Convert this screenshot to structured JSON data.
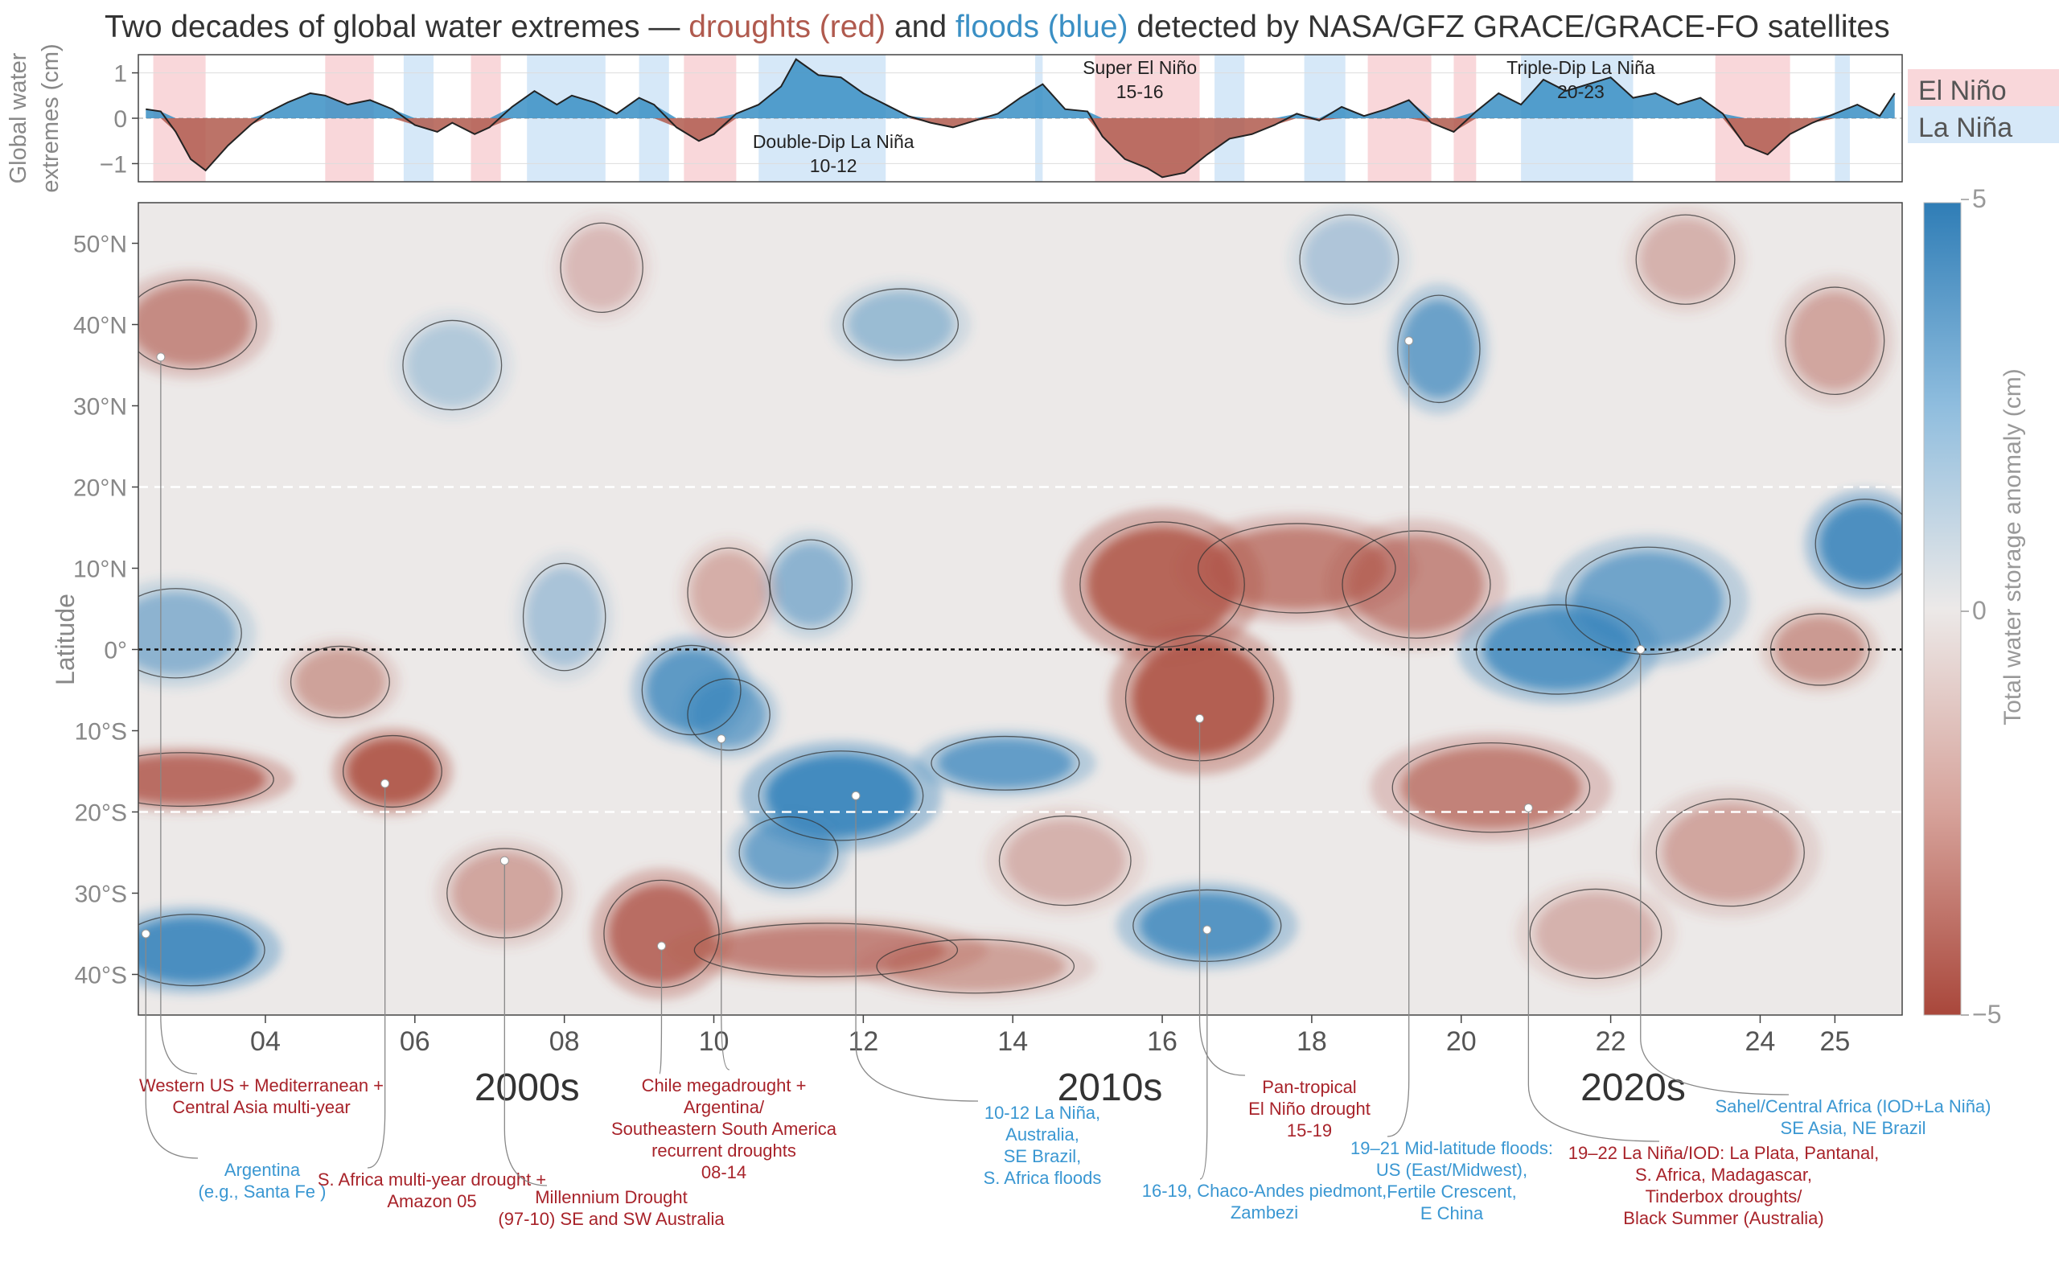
{
  "chart_data": {
    "title": {
      "prefix": "Two decades of global water extremes — ",
      "droughts": "droughts (red)",
      "and": " and ",
      "floods": "floods (blue)",
      "suffix": " detected  by NASA/GFZ GRACE/GRACE-FO satellites"
    },
    "colors": {
      "drought": "#b05a4e",
      "flood": "#3a8fc4",
      "title": "#333333",
      "axis_text": "#888888",
      "el_nino_band": "#f9d7da",
      "la_nina_band": "#d6e8f8",
      "cmap_pos": "#3b86bd",
      "cmap_neg": "#b0574a",
      "cmap_mid": "#ece9e8",
      "annotation_drought": "#a8232a",
      "annotation_flood": "#3a97d2"
    },
    "top_panel": {
      "type": "area",
      "ylabel": "Global water extremes (cm)",
      "ylabel_lines": [
        "Global water",
        "extremes (cm)"
      ],
      "yticks": [
        "1",
        "0",
        "−1"
      ],
      "ytick_values": [
        1,
        0,
        -1
      ],
      "ylim": [
        -1.4,
        1.4
      ],
      "xlim": [
        2002.3,
        2025.9
      ],
      "enso_legend": [
        {
          "label": "El Niño",
          "color": "#f9d7da"
        },
        {
          "label": "La Niña",
          "color": "#d6e8f8"
        }
      ],
      "el_nino_periods": [
        [
          2002.5,
          2003.2
        ],
        [
          2004.8,
          2005.45
        ],
        [
          2006.75,
          2007.15
        ],
        [
          2009.6,
          2010.3
        ],
        [
          2015.1,
          2016.5
        ],
        [
          2018.75,
          2019.6
        ],
        [
          2019.9,
          2020.2
        ],
        [
          2023.4,
          2024.4
        ]
      ],
      "la_nina_periods": [
        [
          2005.85,
          2006.25
        ],
        [
          2007.5,
          2008.55
        ],
        [
          2009.0,
          2009.4
        ],
        [
          2010.6,
          2012.3
        ],
        [
          2014.3,
          2014.4
        ],
        [
          2016.7,
          2017.1
        ],
        [
          2017.9,
          2018.45
        ],
        [
          2020.8,
          2022.3
        ],
        [
          2025.0,
          2025.2
        ]
      ],
      "event_labels": [
        {
          "line1": "Double-Dip La Niña",
          "line2": "10-12",
          "x": 2011.6,
          "position": "below"
        },
        {
          "line1": "Super El Niño",
          "line2": "15-16",
          "x": 2015.7,
          "position": "above"
        },
        {
          "line1": "Triple-Dip La Niña",
          "line2": "20-23",
          "x": 2021.6,
          "position": "above"
        }
      ],
      "series": {
        "name": "Global water extremes",
        "x": [
          2002.4,
          2002.6,
          2002.8,
          2003.0,
          2003.2,
          2003.5,
          2003.8,
          2004.0,
          2004.3,
          2004.6,
          2004.8,
          2005.1,
          2005.4,
          2005.7,
          2006.0,
          2006.3,
          2006.5,
          2006.8,
          2007.0,
          2007.3,
          2007.6,
          2007.9,
          2008.1,
          2008.4,
          2008.7,
          2009.0,
          2009.2,
          2009.5,
          2009.8,
          2010.0,
          2010.3,
          2010.6,
          2010.9,
          2011.1,
          2011.4,
          2011.7,
          2012.0,
          2012.3,
          2012.6,
          2012.9,
          2013.2,
          2013.5,
          2013.8,
          2014.1,
          2014.4,
          2014.7,
          2015.0,
          2015.2,
          2015.5,
          2015.8,
          2016.0,
          2016.3,
          2016.6,
          2016.9,
          2017.2,
          2017.5,
          2017.8,
          2018.1,
          2018.4,
          2018.7,
          2019.0,
          2019.3,
          2019.6,
          2019.9,
          2020.2,
          2020.5,
          2020.8,
          2021.1,
          2021.4,
          2021.7,
          2022.0,
          2022.3,
          2022.6,
          2022.9,
          2023.2,
          2023.5,
          2023.8,
          2024.1,
          2024.4,
          2024.7,
          2025.0,
          2025.3,
          2025.6,
          2025.8
        ],
        "y": [
          0.2,
          0.15,
          -0.3,
          -0.9,
          -1.15,
          -0.6,
          -0.15,
          0.1,
          0.35,
          0.55,
          0.5,
          0.3,
          0.4,
          0.2,
          -0.15,
          -0.3,
          -0.1,
          -0.35,
          -0.2,
          0.25,
          0.6,
          0.3,
          0.5,
          0.35,
          0.1,
          0.45,
          0.3,
          -0.2,
          -0.5,
          -0.35,
          0.1,
          0.3,
          0.7,
          1.3,
          0.95,
          0.9,
          0.55,
          0.3,
          0.05,
          -0.1,
          -0.2,
          -0.05,
          0.1,
          0.45,
          0.75,
          0.2,
          0.15,
          -0.4,
          -0.9,
          -1.1,
          -1.3,
          -1.2,
          -0.8,
          -0.45,
          -0.35,
          -0.15,
          0.1,
          -0.05,
          0.25,
          0.05,
          0.2,
          0.4,
          -0.1,
          -0.3,
          0.15,
          0.55,
          0.3,
          0.85,
          0.6,
          0.75,
          0.9,
          0.45,
          0.55,
          0.3,
          0.45,
          0.1,
          -0.6,
          -0.8,
          -0.35,
          -0.1,
          0.1,
          0.3,
          0.05,
          0.55
        ]
      }
    },
    "heatmap": {
      "type": "heatmap",
      "ylabel": "Latitude",
      "xlim": [
        2002.3,
        2025.9
      ],
      "ylim": [
        -45,
        55
      ],
      "xticks": [
        {
          "label": "04",
          "value": 2004
        },
        {
          "label": "06",
          "value": 2006
        },
        {
          "label": "08",
          "value": 2008
        },
        {
          "label": "10",
          "value": 2010
        },
        {
          "label": "12",
          "value": 2012
        },
        {
          "label": "14",
          "value": 2014
        },
        {
          "label": "16",
          "value": 2016
        },
        {
          "label": "18",
          "value": 2018
        },
        {
          "label": "20",
          "value": 2020
        },
        {
          "label": "22",
          "value": 2022
        },
        {
          "label": "24",
          "value": 2024
        },
        {
          "label": "25",
          "value": 2025
        }
      ],
      "decade_labels": [
        {
          "label": "2000s",
          "x": 2007.5
        },
        {
          "label": "2010s",
          "x": 2015.3
        },
        {
          "label": "2020s",
          "x": 2022.3
        }
      ],
      "yticks": [
        {
          "label": "50°N",
          "value": 50
        },
        {
          "label": "40°N",
          "value": 40
        },
        {
          "label": "30°N",
          "value": 30
        },
        {
          "label": "20°N",
          "value": 20
        },
        {
          "label": "10°N",
          "value": 10
        },
        {
          "label": "0°",
          "value": 0
        },
        {
          "label": "10°S",
          "value": -10
        },
        {
          "label": "20°S",
          "value": -20
        },
        {
          "label": "30°S",
          "value": -30
        },
        {
          "label": "40°S",
          "value": -40
        }
      ],
      "reference_lines": [
        {
          "lat": 20,
          "style": "dashed-white"
        },
        {
          "lat": -20,
          "style": "dashed-white"
        },
        {
          "lat": 0,
          "style": "dotted-black"
        }
      ],
      "colorbar": {
        "label": "Total water storage anomaly  (cm)",
        "ticks": [
          "5",
          "0",
          "−5"
        ],
        "range": [
          -5,
          5
        ]
      },
      "blobs": [
        {
          "x": 2003.0,
          "lat": 40,
          "sx": 0.8,
          "sy": 5,
          "v": -2.2
        },
        {
          "x": 2002.9,
          "lat": -16,
          "sx": 1.1,
          "sy": 3,
          "v": -3.2
        },
        {
          "x": 2005.7,
          "lat": -15,
          "sx": 0.6,
          "sy": 4,
          "v": -3.8
        },
        {
          "x": 2005.0,
          "lat": -4,
          "sx": 0.6,
          "sy": 4,
          "v": -1.6
        },
        {
          "x": 2003.0,
          "lat": -37,
          "sx": 0.9,
          "sy": 4,
          "v": 3.6
        },
        {
          "x": 2002.8,
          "lat": 2,
          "sx": 0.8,
          "sy": 5,
          "v": 1.8
        },
        {
          "x": 2007.2,
          "lat": -30,
          "sx": 0.7,
          "sy": 5,
          "v": -1.5
        },
        {
          "x": 2008.0,
          "lat": 4,
          "sx": 0.5,
          "sy": 6,
          "v": 1.2
        },
        {
          "x": 2009.7,
          "lat": -5,
          "sx": 0.6,
          "sy": 5,
          "v": 3.0
        },
        {
          "x": 2010.2,
          "lat": -8,
          "sx": 0.5,
          "sy": 4,
          "v": 2.4
        },
        {
          "x": 2009.3,
          "lat": -35,
          "sx": 0.7,
          "sy": 6,
          "v": -3.2
        },
        {
          "x": 2011.5,
          "lat": -37,
          "sx": 1.6,
          "sy": 3,
          "v": -2.4
        },
        {
          "x": 2013.5,
          "lat": -39,
          "sx": 1.2,
          "sy": 3,
          "v": -1.6
        },
        {
          "x": 2011.7,
          "lat": -18,
          "sx": 1.0,
          "sy": 5,
          "v": 3.8
        },
        {
          "x": 2011.0,
          "lat": -25,
          "sx": 0.6,
          "sy": 4,
          "v": 2.5
        },
        {
          "x": 2013.9,
          "lat": -14,
          "sx": 0.9,
          "sy": 3,
          "v": 2.8
        },
        {
          "x": 2011.3,
          "lat": 8,
          "sx": 0.5,
          "sy": 5,
          "v": 1.8
        },
        {
          "x": 2010.2,
          "lat": 7,
          "sx": 0.5,
          "sy": 5,
          "v": -1.3
        },
        {
          "x": 2012.5,
          "lat": 40,
          "sx": 0.7,
          "sy": 4,
          "v": 1.5
        },
        {
          "x": 2016.0,
          "lat": 8,
          "sx": 1.0,
          "sy": 7,
          "v": -3.5
        },
        {
          "x": 2016.5,
          "lat": -6,
          "sx": 0.9,
          "sy": 7,
          "v": -3.8
        },
        {
          "x": 2017.8,
          "lat": 10,
          "sx": 1.2,
          "sy": 5,
          "v": -2.5
        },
        {
          "x": 2019.4,
          "lat": 8,
          "sx": 0.9,
          "sy": 6,
          "v": -2.2
        },
        {
          "x": 2016.6,
          "lat": -34,
          "sx": 0.9,
          "sy": 4,
          "v": 3.2
        },
        {
          "x": 2019.7,
          "lat": 37,
          "sx": 0.5,
          "sy": 6,
          "v": 2.6
        },
        {
          "x": 2020.4,
          "lat": -17,
          "sx": 1.2,
          "sy": 5,
          "v": -2.5
        },
        {
          "x": 2021.3,
          "lat": 0,
          "sx": 1.0,
          "sy": 5,
          "v": 3.2
        },
        {
          "x": 2022.5,
          "lat": 6,
          "sx": 1.0,
          "sy": 6,
          "v": 2.5
        },
        {
          "x": 2025.4,
          "lat": 13,
          "sx": 0.6,
          "sy": 5,
          "v": 3.5
        },
        {
          "x": 2024.8,
          "lat": 0,
          "sx": 0.6,
          "sy": 4,
          "v": -1.8
        },
        {
          "x": 2023.6,
          "lat": -25,
          "sx": 0.9,
          "sy": 6,
          "v": -1.5
        },
        {
          "x": 2021.8,
          "lat": -35,
          "sx": 0.8,
          "sy": 5,
          "v": -1.2
        },
        {
          "x": 2025.0,
          "lat": 38,
          "sx": 0.6,
          "sy": 6,
          "v": -1.5
        },
        {
          "x": 2006.5,
          "lat": 35,
          "sx": 0.6,
          "sy": 5,
          "v": 1.0
        },
        {
          "x": 2008.5,
          "lat": 47,
          "sx": 0.5,
          "sy": 5,
          "v": -1.0
        },
        {
          "x": 2018.5,
          "lat": 48,
          "sx": 0.6,
          "sy": 5,
          "v": 1.1
        },
        {
          "x": 2014.7,
          "lat": -26,
          "sx": 0.8,
          "sy": 5,
          "v": -1.2
        },
        {
          "x": 2023.0,
          "lat": 48,
          "sx": 0.6,
          "sy": 5,
          "v": -1.2
        }
      ]
    },
    "annotations": [
      {
        "lines": [
          "Western US + Mediterranean +",
          "Central Asia multi-year"
        ],
        "kind": "drought",
        "point": [
          2002.6,
          36
        ]
      },
      {
        "lines": [
          "Argentina",
          "(e.g., Santa Fe )"
        ],
        "kind": "flood",
        "point": [
          2002.4,
          -35
        ]
      },
      {
        "lines": [
          "S. Africa multi-year drought +",
          "Amazon 05"
        ],
        "kind": "drought",
        "point": [
          2005.6,
          -16.5
        ]
      },
      {
        "lines": [
          "Millennium Drought",
          "(97-10)  SE and SW Australia"
        ],
        "kind": "drought",
        "point": [
          2007.2,
          -26
        ]
      },
      {
        "lines": [
          "Chile megadrought +",
          "Argentina/",
          "Southeastern South America",
          "recurrent droughts",
          "08-14"
        ],
        "kind": "drought",
        "point": [
          2009.3,
          -36.5
        ]
      },
      {
        "lines": [
          "10-12 La Niña,",
          "Australia,",
          "SE Brazil,",
          "S. Africa floods"
        ],
        "kind": "flood",
        "point": [
          2011.9,
          -18
        ]
      },
      {
        "lines": [
          "Pan-tropical",
          "El Niño drought",
          "15-19"
        ],
        "kind": "drought",
        "point": [
          2016.5,
          -8.5
        ]
      },
      {
        "lines": [
          "16-19, Chaco-Andes piedmont,",
          "Zambezi"
        ],
        "kind": "flood",
        "point": [
          2016.6,
          -34.5
        ]
      },
      {
        "lines": [
          "19–21 Mid-latitude floods:",
          "US (East/Midwest),",
          "Fertile Crescent,",
          "E China"
        ],
        "kind": "flood",
        "point": [
          2019.3,
          38
        ]
      },
      {
        "lines": [
          "19–22 La Niña/IOD: La Plata, Pantanal,",
          "S. Africa, Madagascar,",
          "Tinderbox droughts/",
          "Black Summer (Australia)"
        ],
        "kind": "drought",
        "point": [
          2020.9,
          -19.5
        ]
      },
      {
        "lines": [
          "Sahel/Central Africa (IOD+La Niña)",
          "SE Asia, NE Brazil"
        ],
        "kind": "flood",
        "point": [
          2022.4,
          0
        ]
      },
      {
        "lines": [
          "10-12 La Niña"
        ],
        "kind": "flood",
        "point": [
          2010.1,
          -11
        ],
        "hidden_text": true
      }
    ]
  }
}
